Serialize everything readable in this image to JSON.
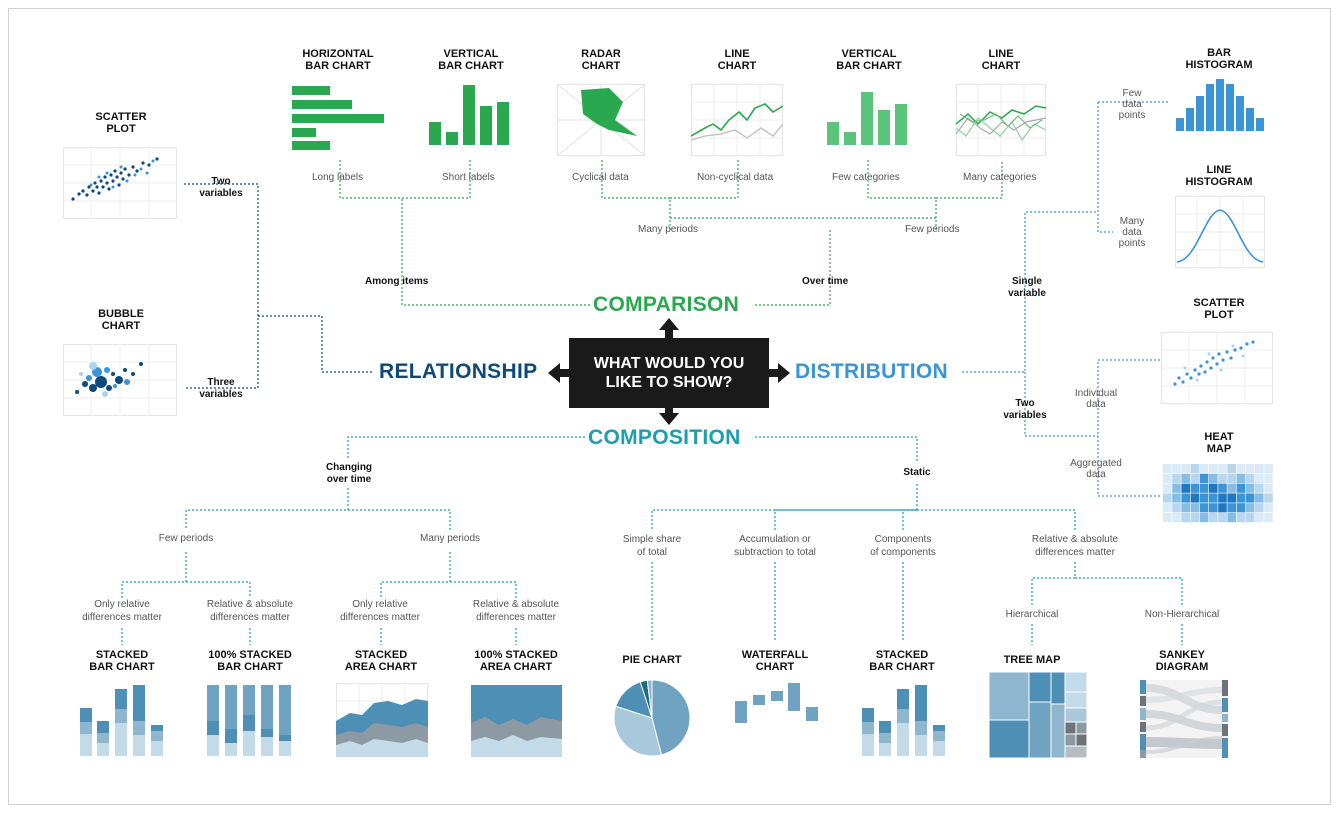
{
  "center": {
    "question": "WHAT WOULD YOU\nLIKE TO SHOW?"
  },
  "categories": {
    "comparison": "COMPARISON",
    "relationship": "RELATIONSHIP",
    "distribution": "DISTRIBUTION",
    "composition": "COMPOSITION"
  },
  "colors": {
    "comparison": "#2aa84f",
    "relationship": "#0d4a7a",
    "distribution": "#3a94d6",
    "composition": "#1a9eb0",
    "center": "#1a1a1a"
  },
  "comparison": {
    "among_items": "Among items",
    "over_time": "Over time",
    "many_periods": "Many periods",
    "few_periods": "Few periods",
    "long_labels": "Long labels",
    "short_labels": "Short labels",
    "cyclical": "Cyclical data",
    "non_cyclical": "Non-cyclical data",
    "few_categories": "Few categories",
    "many_categories": "Many categories",
    "charts": {
      "hbar": "HORIZONTAL\nBAR CHART",
      "vbar": "VERTICAL\nBAR CHART",
      "radar": "RADAR\nCHART",
      "line1": "LINE\nCHART",
      "vbar2": "VERTICAL\nBAR CHART",
      "line2": "LINE\nCHART"
    }
  },
  "relationship": {
    "two_variables": "Two\nvariables",
    "three_variables": "Three\nvariables",
    "charts": {
      "scatter": "SCATTER\nPLOT",
      "bubble": "BUBBLE\nCHART"
    }
  },
  "distribution": {
    "single_variable": "Single\nvariable",
    "two_variables": "Two\nvariables",
    "few_points": "Few\ndata\npoints",
    "many_points": "Many\ndata\npoints",
    "individual": "Individual\ndata",
    "aggregated": "Aggregated\ndata",
    "charts": {
      "bar_hist": "BAR\nHISTOGRAM",
      "line_hist": "LINE\nHISTOGRAM",
      "scatter": "SCATTER\nPLOT",
      "heat": "HEAT\nMAP"
    }
  },
  "composition": {
    "changing": "Changing\nover time",
    "static": "Static",
    "few_periods": "Few periods",
    "many_periods": "Many periods",
    "only_relative_1": "Only relative\ndifferences matter",
    "rel_abs_1": "Relative & absolute\ndifferences matter",
    "only_relative_2": "Only relative\ndifferences matter",
    "rel_abs_2": "Relative & absolute\ndifferences matter",
    "simple_share": "Simple share\nof total",
    "accumulation": "Accumulation or\nsubtraction to total",
    "components": "Components\nof components",
    "rel_abs_static": "Relative & absolute\ndifferences matter",
    "hierarchical": "Hierarchical",
    "non_hierarchical": "Non-Hierarchical",
    "charts": {
      "stacked_bar": "STACKED\nBAR CHART",
      "stacked_bar_100": "100% STACKED\nBAR CHART",
      "stacked_area": "STACKED\nAREA CHART",
      "stacked_area_100": "100% STACKED\nAREA CHART",
      "pie": "PIE CHART",
      "waterfall": "WATERFALL\nCHART",
      "stacked_bar_2": "STACKED\nBAR CHART",
      "tree_map": "TREE MAP",
      "sankey": "SANKEY\nDIAGRAM"
    }
  }
}
